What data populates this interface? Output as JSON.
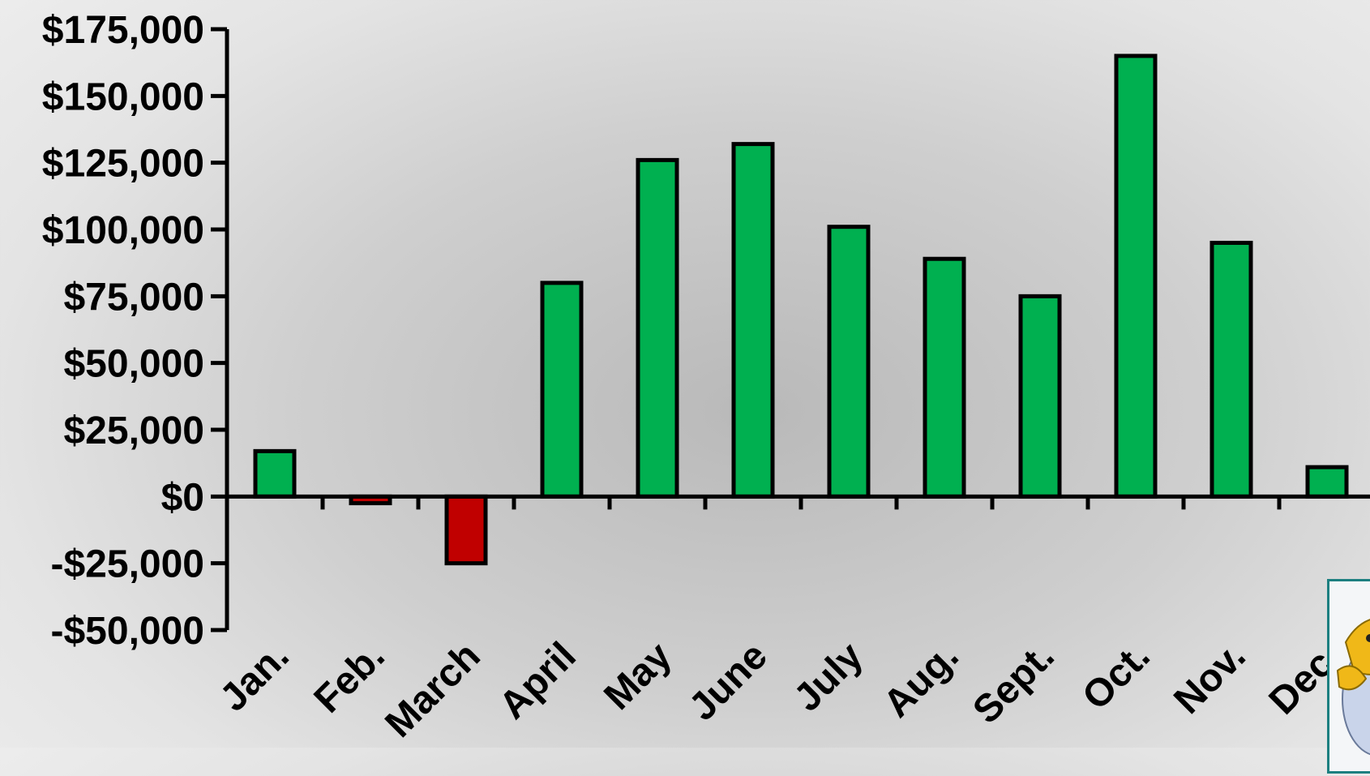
{
  "chart_data": {
    "type": "bar",
    "title": "",
    "xlabel": "",
    "ylabel": "",
    "ylim": [
      -50000,
      175000
    ],
    "yticks": [
      -50000,
      -25000,
      0,
      25000,
      50000,
      75000,
      100000,
      125000,
      150000,
      175000
    ],
    "ytick_labels": [
      "-$50,000",
      "-$25,000",
      "$0",
      "$25,000",
      "$50,000",
      "$75,000",
      "$100,000",
      "$125,000",
      "$150,000",
      "$175,000"
    ],
    "categories": [
      "Jan.",
      "Feb.",
      "March",
      "April",
      "May",
      "June",
      "July",
      "Aug.",
      "Sept.",
      "Oct.",
      "Nov.",
      "Dec."
    ],
    "values": [
      17000,
      -2500,
      -25000,
      80000,
      126000,
      132000,
      101000,
      89000,
      75000,
      165000,
      95000,
      11000
    ],
    "grid": false,
    "legend": "none",
    "colors": {
      "positive": "#00b050",
      "negative": "#c00000",
      "outline": "#000000"
    }
  },
  "clipart": {
    "icon": "cartoon-figure-icon"
  }
}
